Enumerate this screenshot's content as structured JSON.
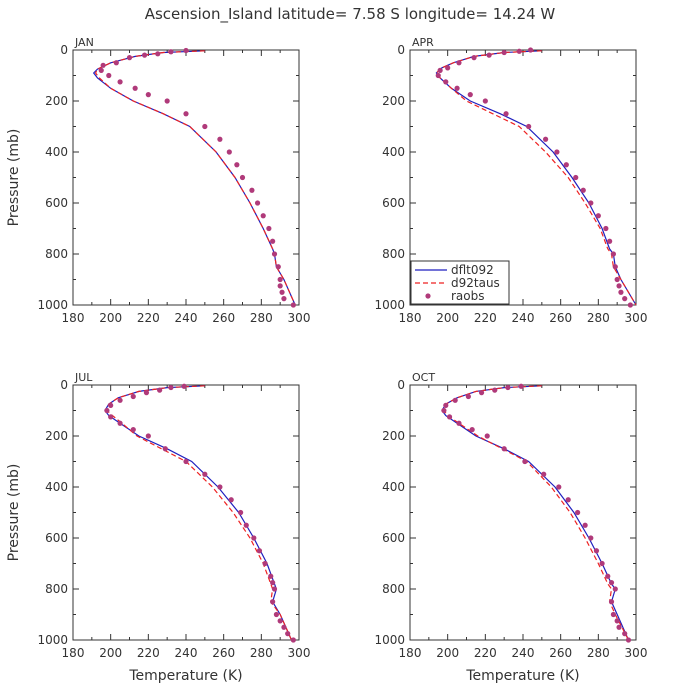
{
  "title": "Ascension_Island  latitude= 7.58 S longitude= 14.24 W",
  "colors": {
    "dflt092": "#1f1fbf",
    "d92taus": "#ee2222",
    "raobs": "#b03a7a",
    "axis": "#333333"
  },
  "legend": {
    "panel": 1,
    "entries": [
      {
        "label": "dflt092",
        "style": "solid-line"
      },
      {
        "label": "d92taus",
        "style": "dashed-line"
      },
      {
        "label": "raobs",
        "style": "dot"
      }
    ]
  },
  "chart_data": [
    {
      "type": "line",
      "month": "JAN",
      "xlabel": "",
      "ylabel": "Pressure (mb)",
      "xlim": [
        180,
        300
      ],
      "ylim": [
        1000,
        0
      ],
      "xticks": [
        180,
        200,
        220,
        240,
        260,
        280,
        300
      ],
      "yticks": [
        0,
        200,
        400,
        600,
        800,
        1000
      ],
      "series": [
        {
          "name": "dflt092",
          "x": [
            250,
            228,
            213,
            200,
            193,
            191,
            193,
            200,
            212,
            228,
            242,
            256,
            266,
            274,
            281,
            286,
            287,
            288,
            292,
            298
          ],
          "y": [
            3,
            10,
            25,
            50,
            75,
            90,
            110,
            150,
            200,
            250,
            300,
            400,
            500,
            600,
            700,
            780,
            800,
            850,
            900,
            1000
          ]
        },
        {
          "name": "d92taus",
          "x": [
            250,
            228,
            213,
            200,
            193,
            192,
            194,
            200,
            212,
            228,
            242,
            256,
            266,
            274,
            281,
            286,
            287,
            288,
            292,
            298
          ],
          "y": [
            3,
            10,
            25,
            50,
            75,
            90,
            110,
            150,
            200,
            250,
            300,
            400,
            500,
            600,
            700,
            780,
            800,
            850,
            900,
            1000
          ]
        },
        {
          "name": "raobs",
          "x": [
            240,
            232,
            225,
            218,
            210,
            203,
            196,
            195,
            199,
            205,
            213,
            220,
            230,
            240,
            250,
            258,
            263,
            267,
            270,
            275,
            278,
            281,
            284,
            286,
            287,
            289,
            290,
            290,
            291,
            292,
            297
          ],
          "y": [
            2,
            7,
            15,
            20,
            30,
            50,
            60,
            80,
            100,
            125,
            150,
            175,
            200,
            250,
            300,
            350,
            400,
            450,
            500,
            550,
            600,
            650,
            700,
            750,
            800,
            850,
            900,
            925,
            950,
            975,
            1000
          ]
        }
      ]
    },
    {
      "type": "line",
      "month": "APR",
      "xlabel": "",
      "ylabel": "",
      "xlim": [
        180,
        300
      ],
      "ylim": [
        1000,
        0
      ],
      "xticks": [
        180,
        200,
        220,
        240,
        260,
        280,
        300
      ],
      "yticks": [
        0,
        200,
        400,
        600,
        800,
        1000
      ],
      "series": [
        {
          "name": "dflt092",
          "x": [
            250,
            230,
            214,
            203,
            197,
            194,
            196,
            202,
            212,
            228,
            242,
            256,
            266,
            275,
            282,
            286,
            288,
            289,
            292,
            300
          ],
          "y": [
            3,
            10,
            25,
            50,
            70,
            90,
            110,
            150,
            200,
            250,
            300,
            400,
            500,
            600,
            700,
            780,
            800,
            850,
            900,
            1000
          ]
        },
        {
          "name": "d92taus",
          "x": [
            250,
            230,
            214,
            203,
            197,
            194,
            196,
            202,
            210,
            224,
            238,
            252,
            264,
            273,
            281,
            285,
            287,
            288,
            292,
            300
          ],
          "y": [
            3,
            10,
            25,
            50,
            70,
            90,
            110,
            150,
            200,
            250,
            300,
            400,
            500,
            600,
            700,
            780,
            800,
            850,
            900,
            1000
          ]
        },
        {
          "name": "raobs",
          "x": [
            244,
            238,
            230,
            222,
            214,
            206,
            200,
            196,
            195,
            199,
            205,
            212,
            220,
            231,
            243,
            252,
            258,
            263,
            268,
            272,
            276,
            280,
            284,
            286,
            288,
            289,
            290,
            291,
            292,
            294,
            297
          ],
          "y": [
            0,
            5,
            10,
            20,
            30,
            50,
            70,
            80,
            100,
            125,
            150,
            175,
            200,
            250,
            300,
            350,
            400,
            450,
            500,
            550,
            600,
            650,
            700,
            750,
            800,
            850,
            900,
            925,
            950,
            975,
            1000
          ]
        }
      ]
    },
    {
      "type": "line",
      "month": "JUL",
      "xlabel": "Temperature (K)",
      "ylabel": "Pressure (mb)",
      "xlim": [
        180,
        300
      ],
      "ylim": [
        1000,
        0
      ],
      "xticks": [
        180,
        200,
        220,
        240,
        260,
        280,
        300
      ],
      "yticks": [
        0,
        200,
        400,
        600,
        800,
        1000
      ],
      "series": [
        {
          "name": "dflt092",
          "x": [
            250,
            230,
            215,
            204,
            199,
            197,
            199,
            205,
            215,
            230,
            243,
            257,
            268,
            276,
            283,
            287,
            288,
            286,
            290,
            296
          ],
          "y": [
            3,
            10,
            25,
            50,
            75,
            100,
            120,
            150,
            200,
            250,
            300,
            400,
            500,
            600,
            700,
            780,
            800,
            850,
            900,
            1000
          ]
        },
        {
          "name": "d92taus",
          "x": [
            250,
            230,
            215,
            204,
            199,
            198,
            201,
            206,
            214,
            227,
            240,
            254,
            265,
            274,
            281,
            285,
            286,
            285,
            290,
            296
          ],
          "y": [
            3,
            10,
            25,
            50,
            75,
            100,
            120,
            150,
            200,
            250,
            300,
            400,
            500,
            600,
            700,
            780,
            800,
            850,
            900,
            1000
          ]
        },
        {
          "name": "raobs",
          "x": [
            239,
            232,
            226,
            219,
            212,
            205,
            200,
            198,
            200,
            205,
            212,
            220,
            229,
            240,
            250,
            258,
            264,
            269,
            272,
            276,
            279,
            282,
            285,
            286,
            287,
            286,
            288,
            290,
            292,
            294,
            297
          ],
          "y": [
            5,
            10,
            20,
            30,
            45,
            60,
            80,
            100,
            125,
            150,
            175,
            200,
            250,
            300,
            350,
            400,
            450,
            500,
            550,
            600,
            650,
            700,
            750,
            775,
            800,
            850,
            900,
            925,
            950,
            975,
            1000
          ]
        }
      ]
    },
    {
      "type": "line",
      "month": "OCT",
      "xlabel": "Temperature (K)",
      "ylabel": "",
      "xlim": [
        180,
        300
      ],
      "ylim": [
        1000,
        0
      ],
      "xticks": [
        180,
        200,
        220,
        240,
        260,
        280,
        300
      ],
      "yticks": [
        0,
        200,
        400,
        600,
        800,
        1000
      ],
      "series": [
        {
          "name": "dflt092",
          "x": [
            250,
            230,
            215,
            205,
            199,
            197,
            199,
            205,
            215,
            230,
            243,
            257,
            267,
            275,
            282,
            287,
            289,
            287,
            290,
            296
          ],
          "y": [
            3,
            10,
            25,
            50,
            75,
            100,
            120,
            150,
            200,
            250,
            300,
            400,
            500,
            600,
            700,
            780,
            800,
            850,
            900,
            1000
          ]
        },
        {
          "name": "d92taus",
          "x": [
            250,
            230,
            215,
            205,
            199,
            198,
            200,
            206,
            216,
            229,
            242,
            255,
            265,
            273,
            280,
            285,
            287,
            286,
            289,
            296
          ],
          "y": [
            3,
            10,
            25,
            50,
            75,
            100,
            120,
            150,
            200,
            250,
            300,
            400,
            500,
            600,
            700,
            780,
            800,
            850,
            900,
            1000
          ]
        },
        {
          "name": "raobs",
          "x": [
            239,
            232,
            225,
            218,
            211,
            204,
            199,
            198,
            201,
            206,
            213,
            221,
            230,
            241,
            251,
            259,
            264,
            269,
            273,
            276,
            279,
            282,
            285,
            287,
            289,
            287,
            288,
            290,
            291,
            294,
            296
          ],
          "y": [
            5,
            10,
            20,
            30,
            45,
            60,
            80,
            100,
            125,
            150,
            175,
            200,
            250,
            300,
            350,
            400,
            450,
            500,
            550,
            600,
            650,
            700,
            750,
            775,
            800,
            850,
            900,
            925,
            950,
            975,
            1000
          ]
        }
      ]
    }
  ]
}
